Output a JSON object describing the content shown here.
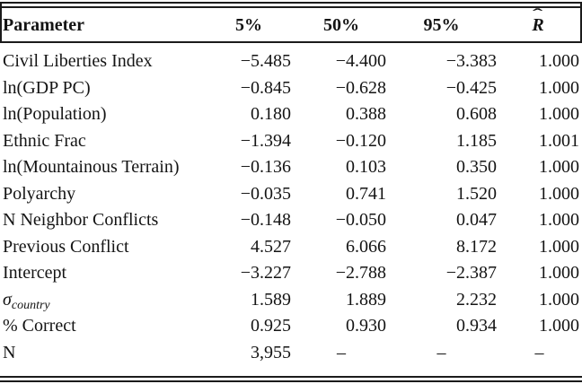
{
  "colors": {
    "background": "#ffffff",
    "text": "#141414",
    "rule": "#1b1b1b"
  },
  "table": {
    "headers": {
      "parameter": "Parameter",
      "p5": "5%",
      "p50": "50%",
      "p95": "95%",
      "rhat_base": "R",
      "rhat_hat": "ˆ"
    },
    "rows": [
      {
        "param": "Civil Liberties Index",
        "p5": "−5.485",
        "p50": "−4.400",
        "p95": "−3.383",
        "rhat": "1.000"
      },
      {
        "param": "ln(GDP PC)",
        "p5": "−0.845",
        "p50": "−0.628",
        "p95": "−0.425",
        "rhat": "1.000"
      },
      {
        "param": "ln(Population)",
        "p5": "0.180",
        "p50": "0.388",
        "p95": "0.608",
        "rhat": "1.000"
      },
      {
        "param": "Ethnic Frac",
        "p5": "−1.394",
        "p50": "−0.120",
        "p95": "1.185",
        "rhat": "1.001"
      },
      {
        "param": "ln(Mountainous Terrain)",
        "p5": "−0.136",
        "p50": "0.103",
        "p95": "0.350",
        "rhat": "1.000"
      },
      {
        "param": "Polyarchy",
        "p5": "−0.035",
        "p50": "0.741",
        "p95": "1.520",
        "rhat": "1.000"
      },
      {
        "param": "N Neighbor Conflicts",
        "p5": "−0.148",
        "p50": "−0.050",
        "p95": "0.047",
        "rhat": "1.000"
      },
      {
        "param": "Previous Conflict",
        "p5": "4.527",
        "p50": "6.066",
        "p95": "8.172",
        "rhat": "1.000"
      },
      {
        "param": "Intercept",
        "p5": "−3.227",
        "p50": "−2.788",
        "p95": "−2.387",
        "rhat": "1.000"
      },
      {
        "param_base": "σ",
        "param_sub": "country",
        "p5": "1.589",
        "p50": "1.889",
        "p95": "2.232",
        "rhat": "1.000"
      },
      {
        "param": "% Correct",
        "p5": "0.925",
        "p50": "0.930",
        "p95": "0.934",
        "rhat": "1.000"
      },
      {
        "param": "N",
        "p5": "3,955",
        "p50": "–",
        "p95": "–",
        "rhat": "–"
      }
    ]
  }
}
